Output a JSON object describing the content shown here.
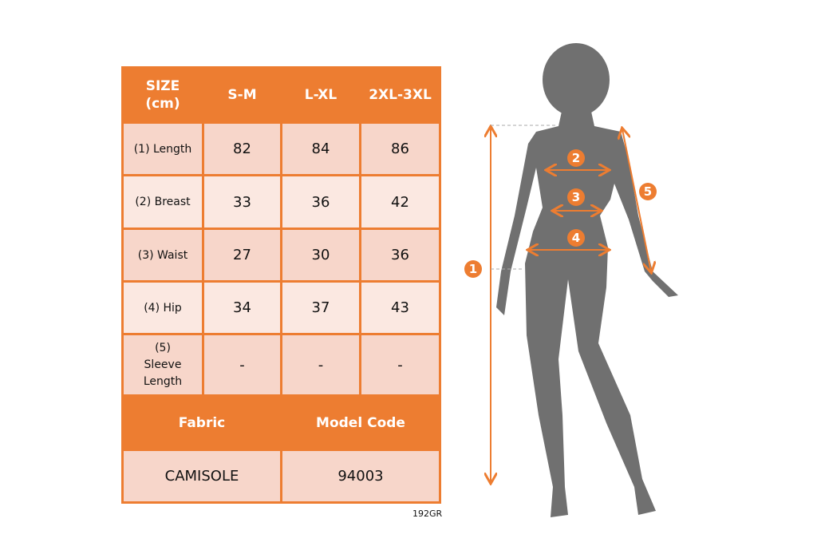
{
  "table": {
    "header": [
      "SIZE\n(cm)",
      "S-M",
      "L-XL",
      "2XL-3XL"
    ],
    "rows": [
      {
        "label": "(1) Length",
        "values": [
          "82",
          "84",
          "86"
        ]
      },
      {
        "label": "(2) Breast",
        "values": [
          "33",
          "36",
          "42"
        ]
      },
      {
        "label": "(3) Waist",
        "values": [
          "27",
          "30",
          "36"
        ]
      },
      {
        "label": "(4) Hip",
        "values": [
          "34",
          "37",
          "43"
        ]
      },
      {
        "label": "(5) Sleeve Length",
        "values": [
          "-",
          "-",
          "-"
        ]
      }
    ],
    "footer_headers": [
      "Fabric",
      "Model Code"
    ],
    "footer_values": [
      "CAMISOLE",
      "94003"
    ]
  },
  "product_code": "192GR",
  "figure": {
    "markers": [
      "1",
      "2",
      "3",
      "4",
      "5"
    ],
    "accent_color": "#ED7D31",
    "silhouette_color": "#707070"
  }
}
